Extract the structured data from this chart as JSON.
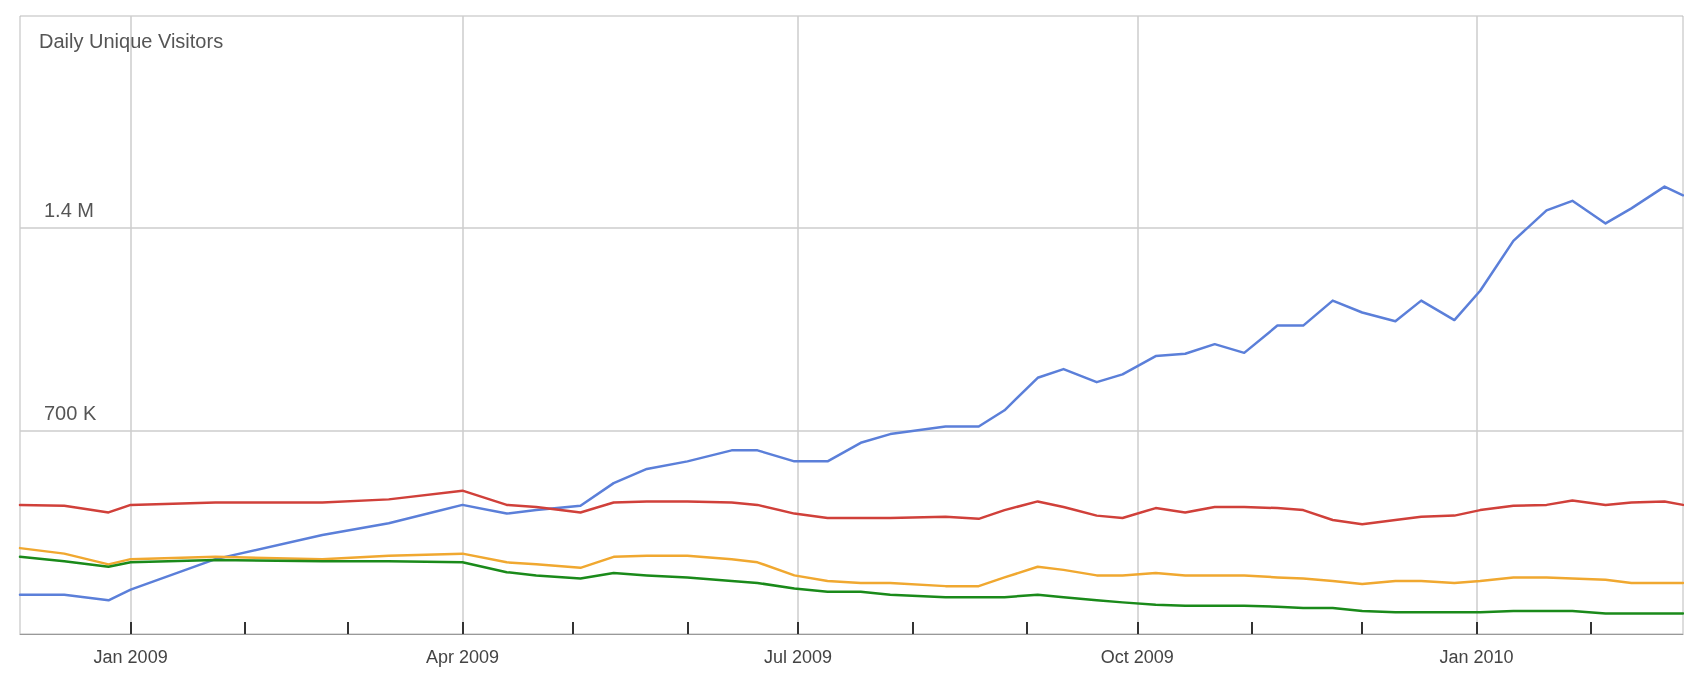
{
  "chart_data": {
    "type": "line",
    "ylabel": "Daily Unique Visitors",
    "x": [
      "2008-12-02",
      "2008-12-14",
      "2008-12-26",
      "2009-01-01",
      "2009-01-24",
      "2009-02-22",
      "2009-03-12",
      "2009-04-01",
      "2009-04-13",
      "2009-04-21",
      "2009-05-03",
      "2009-05-12",
      "2009-05-21",
      "2009-06-01",
      "2009-06-13",
      "2009-06-20",
      "2009-06-30",
      "2009-07-09",
      "2009-07-18",
      "2009-07-26",
      "2009-08-10",
      "2009-08-19",
      "2009-08-26",
      "2009-09-04",
      "2009-09-11",
      "2009-09-20",
      "2009-09-27",
      "2009-10-06",
      "2009-10-14",
      "2009-10-22",
      "2009-10-30",
      "2009-11-08",
      "2009-11-15",
      "2009-11-23",
      "2009-12-01",
      "2009-12-10",
      "2009-12-17",
      "2009-12-26",
      "2010-01-02",
      "2010-01-11",
      "2010-01-20",
      "2010-01-27",
      "2010-02-05",
      "2010-02-12",
      "2010-02-21",
      "2010-02-26"
    ],
    "series": [
      {
        "color": "#5b7fd9",
        "values": [
          135000,
          135000,
          116000,
          153000,
          258000,
          341000,
          382000,
          445000,
          415000,
          427000,
          442000,
          520000,
          569000,
          595000,
          633000,
          633000,
          595000,
          595000,
          659000,
          689000,
          715000,
          715000,
          771000,
          883000,
          913000,
          868000,
          895000,
          958000,
          966000,
          999000,
          969000,
          1063000,
          1063000,
          1149000,
          1108000,
          1078000,
          1149000,
          1082000,
          1183000,
          1355000,
          1460000,
          1493000,
          1415000,
          1467000,
          1542000,
          1512000
        ]
      },
      {
        "color": "#d0403a",
        "values": [
          445000,
          442000,
          419000,
          445000,
          453000,
          453000,
          464000,
          494000,
          445000,
          438000,
          419000,
          453000,
          457000,
          457000,
          453000,
          445000,
          415000,
          400000,
          400000,
          400000,
          404000,
          397000,
          427000,
          457000,
          438000,
          408000,
          400000,
          434000,
          419000,
          438000,
          438000,
          434000,
          427000,
          393000,
          378000,
          393000,
          404000,
          408000,
          427000,
          442000,
          445000,
          460000,
          445000,
          453000,
          457000,
          445000
        ]
      },
      {
        "color": "#f0a830",
        "values": [
          296000,
          277000,
          240000,
          258000,
          266000,
          258000,
          270000,
          277000,
          247000,
          240000,
          228000,
          266000,
          270000,
          270000,
          258000,
          247000,
          202000,
          183000,
          176000,
          176000,
          165000,
          165000,
          195000,
          232000,
          221000,
          202000,
          202000,
          210000,
          202000,
          202000,
          202000,
          195000,
          191000,
          183000,
          172000,
          183000,
          183000,
          176000,
          183000,
          195000,
          195000,
          191000,
          187000,
          176000,
          176000,
          176000
        ]
      },
      {
        "color": "#1a8a1a",
        "values": [
          266000,
          251000,
          232000,
          247000,
          255000,
          251000,
          251000,
          247000,
          213000,
          202000,
          191000,
          210000,
          202000,
          195000,
          183000,
          176000,
          157000,
          146000,
          146000,
          135000,
          127000,
          127000,
          127000,
          135000,
          127000,
          116000,
          109000,
          101000,
          97000,
          97000,
          97000,
          94000,
          90000,
          90000,
          79000,
          75000,
          75000,
          75000,
          75000,
          79000,
          79000,
          79000,
          71000,
          71000,
          71000,
          71000
        ]
      }
    ],
    "xlim": [
      "2008-12-02",
      "2010-02-26"
    ],
    "xticks": [
      {
        "value": "2009-01-01",
        "label": "Jan 2009"
      },
      {
        "value": "2009-02-01",
        "label": null
      },
      {
        "value": "2009-03-01",
        "label": null
      },
      {
        "value": "2009-04-01",
        "label": "Apr 2009"
      },
      {
        "value": "2009-05-01",
        "label": null
      },
      {
        "value": "2009-06-01",
        "label": null
      },
      {
        "value": "2009-07-01",
        "label": "Jul 2009"
      },
      {
        "value": "2009-08-01",
        "label": null
      },
      {
        "value": "2009-09-01",
        "label": null
      },
      {
        "value": "2009-10-01",
        "label": "Oct 2009"
      },
      {
        "value": "2009-11-01",
        "label": null
      },
      {
        "value": "2009-12-01",
        "label": null
      },
      {
        "value": "2010-01-01",
        "label": "Jan 2010"
      },
      {
        "value": "2010-02-01",
        "label": null
      }
    ],
    "ylim": [
      0,
      2130000
    ],
    "yticks": [
      {
        "value": 700000,
        "label": "700 K"
      },
      {
        "value": 1400000,
        "label": "1.4 M"
      }
    ],
    "grid": true,
    "marker": "none",
    "line_style": "solid"
  }
}
